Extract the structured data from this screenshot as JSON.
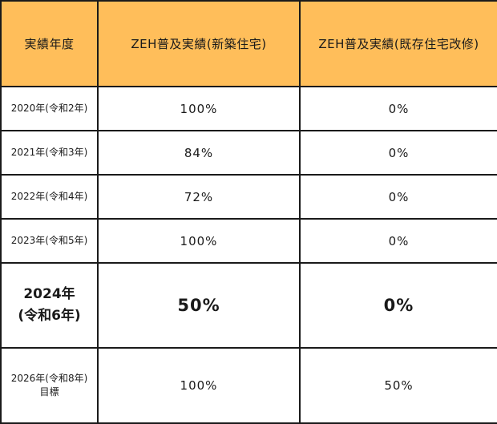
{
  "table": {
    "headers": [
      "実績年度",
      "ZEH普及実績(新築住宅)",
      "ZEH普及実績(既存住宅改修)"
    ],
    "rows": [
      {
        "year": "2020年(令和2年)",
        "note": "",
        "new_build": "100%",
        "renovation": "0%"
      },
      {
        "year": "2021年(令和3年)",
        "note": "",
        "new_build": "84%",
        "renovation": "0%"
      },
      {
        "year": "2022年(令和4年)",
        "note": "",
        "new_build": "72%",
        "renovation": "0%"
      },
      {
        "year": "2023年(令和5年)",
        "note": "",
        "new_build": "100%",
        "renovation": "0%"
      },
      {
        "year": "2024年",
        "year_line2": "(令和6年)",
        "note": "",
        "new_build": "50%",
        "renovation": "0%"
      },
      {
        "year": "2026年(令和8年)",
        "note": "目標",
        "new_build": "100%",
        "renovation": "50%"
      }
    ]
  },
  "colors": {
    "header_background": "#ffbe5a",
    "border": "#1a1a1a"
  }
}
